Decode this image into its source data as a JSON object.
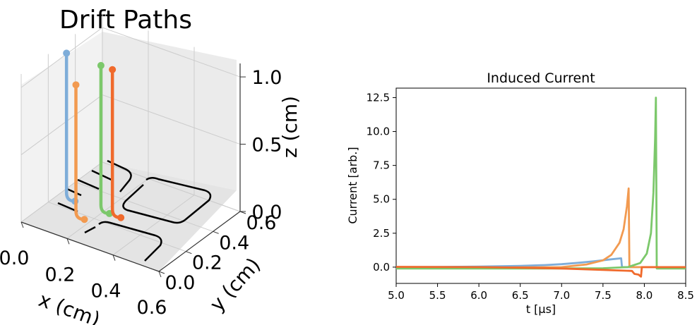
{
  "chart_data": [
    {
      "type": "line3d",
      "title": "Drift Paths",
      "xlabel": "x (cm)",
      "ylabel": "y (cm)",
      "zlabel": "z (cm)",
      "xlim": [
        0.0,
        0.6
      ],
      "ylim": [
        0.0,
        0.6
      ],
      "zlim": [
        0.0,
        1.1
      ],
      "x_ticks": [
        "0.0",
        "0.2",
        "0.4",
        "0.6"
      ],
      "y_ticks": [
        "0.0",
        "0.2",
        "0.4",
        "0.6"
      ],
      "z_ticks": [
        "0.0",
        "0.5",
        "1.0"
      ],
      "grid": true,
      "electrode_color": "#000000",
      "series": [
        {
          "color": "#7eadd9",
          "start": [
            0.05,
            0.25,
            1.1
          ],
          "end": [
            0.05,
            0.25,
            0.0
          ]
        },
        {
          "color": "#f29a50",
          "start": [
            0.15,
            0.15,
            1.0
          ],
          "end": [
            0.15,
            0.15,
            0.0
          ]
        },
        {
          "color": "#7cc86b",
          "start": [
            0.2,
            0.25,
            1.1
          ],
          "end": [
            0.2,
            0.25,
            0.0
          ]
        },
        {
          "color": "#f06a2c",
          "start": [
            0.25,
            0.25,
            1.1
          ],
          "end": [
            0.25,
            0.25,
            0.0
          ]
        }
      ]
    },
    {
      "type": "line",
      "title": "Induced Current",
      "xlabel": "t [μs]",
      "ylabel": "Current [arb.]",
      "xlim": [
        5.0,
        8.5
      ],
      "ylim": [
        -1.2,
        13.2
      ],
      "x_ticks": [
        "5.0",
        "5.5",
        "6.0",
        "6.5",
        "7.0",
        "7.5",
        "8.0",
        "8.5"
      ],
      "y_ticks": [
        "0.0",
        "2.5",
        "5.0",
        "7.5",
        "10.0",
        "12.5"
      ],
      "grid": false,
      "series": [
        {
          "color": "#7eadd9",
          "x": [
            5.0,
            5.5,
            6.0,
            6.5,
            6.8,
            7.0,
            7.2,
            7.4,
            7.6,
            7.72,
            7.73,
            8.5
          ],
          "values": [
            0.0,
            0.01,
            0.04,
            0.09,
            0.15,
            0.22,
            0.32,
            0.44,
            0.58,
            0.65,
            0.0,
            0.0
          ]
        },
        {
          "color": "#f29a50",
          "x": [
            5.0,
            6.0,
            6.5,
            7.0,
            7.3,
            7.5,
            7.6,
            7.7,
            7.75,
            7.79,
            7.81,
            7.82,
            8.5
          ],
          "values": [
            -0.05,
            -0.04,
            -0.02,
            0.0,
            0.2,
            0.5,
            0.9,
            1.8,
            2.8,
            4.5,
            5.8,
            0.0,
            0.0
          ]
        },
        {
          "color": "#7cc86b",
          "x": [
            5.0,
            7.0,
            7.5,
            7.8,
            7.95,
            8.03,
            8.08,
            8.11,
            8.13,
            8.14,
            8.15,
            8.5
          ],
          "values": [
            -0.1,
            -0.1,
            -0.08,
            0.0,
            0.3,
            1.0,
            2.5,
            5.5,
            9.5,
            12.5,
            -0.1,
            -0.1
          ]
        },
        {
          "color": "#f06a2c",
          "x": [
            5.0,
            6.0,
            6.5,
            7.0,
            7.5,
            7.85,
            7.88,
            7.93,
            7.96,
            7.97,
            8.5
          ],
          "values": [
            0.02,
            0.0,
            -0.04,
            -0.1,
            -0.2,
            -0.28,
            -0.5,
            -0.55,
            -0.7,
            0.0,
            0.0
          ]
        }
      ]
    }
  ]
}
